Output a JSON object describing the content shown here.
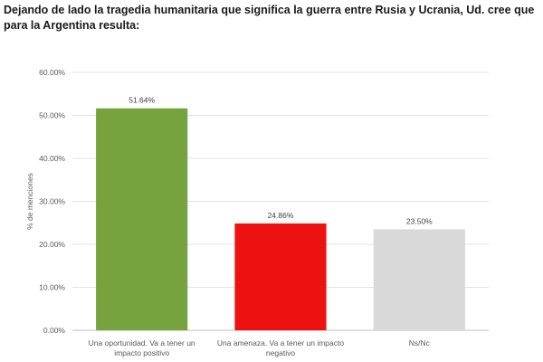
{
  "header": {
    "title": "Dejando de lado la tragedia humanitaria que significa la guerra entre Rusia y Ucrania, Ud. cree que para la Argentina resulta:"
  },
  "chart_data": {
    "type": "bar",
    "title": "Dejando de lado la tragedia humanitaria que significa la guerra entre Rusia y Ucrania, Ud. cree que para la Argentina resulta:",
    "ylabel": "% de menciones",
    "xlabel": "",
    "ylim": [
      0,
      60
    ],
    "yticks": [
      "0.00%",
      "10.00%",
      "20.00%",
      "30.00%",
      "40.00%",
      "50.00%",
      "60.00%"
    ],
    "grid": true,
    "legend": "none",
    "categories": [
      [
        "Una oportunidad. Va a tener un",
        "impacto positivo"
      ],
      [
        "Una amenaza. Va a tener un impacto",
        "negativo"
      ],
      [
        "Ns/Nc"
      ]
    ],
    "values": [
      51.64,
      24.86,
      23.5
    ],
    "data_labels": [
      "51.64%",
      "24.86%",
      "23.50%"
    ],
    "colors": [
      "#77a33f",
      "#ee1111",
      "#d9d9d9"
    ]
  }
}
